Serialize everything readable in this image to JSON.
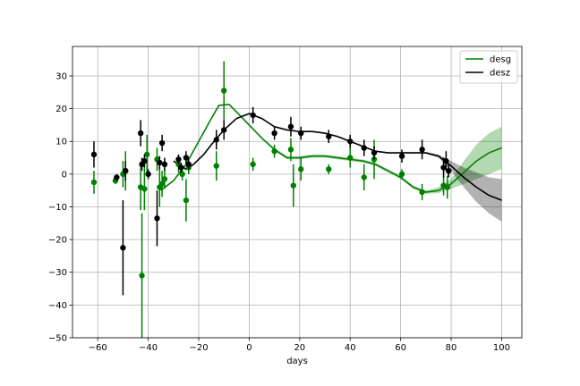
{
  "chart_data": {
    "type": "scatter",
    "xlabel": "days",
    "ylabel": "",
    "xlim": [
      -70,
      108
    ],
    "ylim": [
      -50,
      39
    ],
    "xticks": [
      -60,
      -40,
      -20,
      0,
      20,
      40,
      60,
      80,
      100
    ],
    "yticks": [
      -50,
      -40,
      -30,
      -20,
      -10,
      0,
      10,
      20,
      30
    ],
    "xtick_labels": [
      "−60",
      "−40",
      "−20",
      "0",
      "20",
      "40",
      "60",
      "80",
      "100"
    ],
    "ytick_labels": [
      "−50",
      "−40",
      "−30",
      "−20",
      "−10",
      "0",
      "10",
      "20",
      "30"
    ],
    "grid": true,
    "legend_position": "top-right",
    "series": [
      {
        "name": "desg",
        "color": "#008000",
        "points": [
          {
            "x": -61.5,
            "y": -2.5,
            "err": 3.5
          },
          {
            "x": -53,
            "y": -2.0,
            "err": 1.0
          },
          {
            "x": -50,
            "y": 0.0,
            "err": 4.0
          },
          {
            "x": -49,
            "y": 1.0,
            "err": 6.0
          },
          {
            "x": -43,
            "y": -4.0,
            "err": 7.0
          },
          {
            "x": -42.5,
            "y": -31.0,
            "err": 19.0
          },
          {
            "x": -41.5,
            "y": -4.5,
            "err": 6.5
          },
          {
            "x": -40.5,
            "y": 6.0,
            "err": 6.0
          },
          {
            "x": -36.5,
            "y": 4.5,
            "err": 3.5
          },
          {
            "x": -35.5,
            "y": -4.0,
            "err": 6.0
          },
          {
            "x": -34.5,
            "y": -3.0,
            "err": 4.0
          },
          {
            "x": -33.5,
            "y": -1.5,
            "err": 3.0
          },
          {
            "x": -28,
            "y": 3.0,
            "err": 2.5
          },
          {
            "x": -26.5,
            "y": 0.0,
            "err": 2.0
          },
          {
            "x": -25,
            "y": -8.0,
            "err": 6.5
          },
          {
            "x": -24,
            "y": 2.0,
            "err": 2.0
          },
          {
            "x": -13,
            "y": 2.5,
            "err": 4.5
          },
          {
            "x": -10,
            "y": 25.5,
            "err": 9.0
          },
          {
            "x": 1.5,
            "y": 3.0,
            "err": 2.0
          },
          {
            "x": 10,
            "y": 7.0,
            "err": 2.0
          },
          {
            "x": 16.5,
            "y": 7.5,
            "err": 3.5
          },
          {
            "x": 17.5,
            "y": -3.5,
            "err": 6.5
          },
          {
            "x": 20.5,
            "y": 1.5,
            "err": 3.5
          },
          {
            "x": 31.5,
            "y": 1.5,
            "err": 1.5
          },
          {
            "x": 40,
            "y": 5.0,
            "err": 3.0
          },
          {
            "x": 45.5,
            "y": -1.0,
            "err": 4.0
          },
          {
            "x": 49.5,
            "y": 4.5,
            "err": 6.0
          },
          {
            "x": 60.5,
            "y": 0.0,
            "err": 1.5
          },
          {
            "x": 68.5,
            "y": -5.5,
            "err": 2.5
          },
          {
            "x": 77,
            "y": -3.5,
            "err": 3.0
          },
          {
            "x": 78.5,
            "y": -4.0,
            "err": 3.5
          }
        ],
        "trend": [
          {
            "x": -35,
            "y": -5.0,
            "lo": -5.0,
            "hi": -5.0
          },
          {
            "x": -30,
            "y": -2.0,
            "lo": -2.0,
            "hi": -2.0
          },
          {
            "x": -25,
            "y": 3.0,
            "lo": 3.0,
            "hi": 3.0
          },
          {
            "x": -20,
            "y": 10.0,
            "lo": 10.0,
            "hi": 10.0
          },
          {
            "x": -15,
            "y": 17.0,
            "lo": 17.0,
            "hi": 17.0
          },
          {
            "x": -12,
            "y": 21.0,
            "lo": 21.0,
            "hi": 21.0
          },
          {
            "x": -8,
            "y": 21.3,
            "lo": 21.3,
            "hi": 21.3
          },
          {
            "x": -5,
            "y": 19.0,
            "lo": 19.0,
            "hi": 19.0
          },
          {
            "x": 0,
            "y": 15.0,
            "lo": 15.0,
            "hi": 15.0
          },
          {
            "x": 5,
            "y": 11.0,
            "lo": 11.0,
            "hi": 11.0
          },
          {
            "x": 10,
            "y": 7.5,
            "lo": 7.0,
            "hi": 8.0
          },
          {
            "x": 15,
            "y": 5.0,
            "lo": 4.5,
            "hi": 5.5
          },
          {
            "x": 20,
            "y": 5.0,
            "lo": 4.5,
            "hi": 5.5
          },
          {
            "x": 25,
            "y": 5.5,
            "lo": 5.0,
            "hi": 6.0
          },
          {
            "x": 30,
            "y": 5.5,
            "lo": 5.0,
            "hi": 6.0
          },
          {
            "x": 35,
            "y": 5.0,
            "lo": 4.5,
            "hi": 5.5
          },
          {
            "x": 40,
            "y": 4.5,
            "lo": 4.0,
            "hi": 5.0
          },
          {
            "x": 45,
            "y": 4.0,
            "lo": 3.5,
            "hi": 4.5
          },
          {
            "x": 50,
            "y": 3.0,
            "lo": 2.5,
            "hi": 3.5
          },
          {
            "x": 55,
            "y": 1.0,
            "lo": 0.5,
            "hi": 1.5
          },
          {
            "x": 60,
            "y": -1.0,
            "lo": -1.5,
            "hi": -0.5
          },
          {
            "x": 65,
            "y": -4.0,
            "lo": -4.5,
            "hi": -3.5
          },
          {
            "x": 70,
            "y": -5.5,
            "lo": -6.0,
            "hi": -5.0
          },
          {
            "x": 75,
            "y": -5.0,
            "lo": -5.8,
            "hi": -4.0
          },
          {
            "x": 80,
            "y": -3.0,
            "lo": -4.5,
            "hi": -1.5
          },
          {
            "x": 85,
            "y": 0.5,
            "lo": -3.0,
            "hi": 4.0
          },
          {
            "x": 90,
            "y": 4.0,
            "lo": -1.5,
            "hi": 9.0
          },
          {
            "x": 95,
            "y": 6.5,
            "lo": 0.0,
            "hi": 12.5
          },
          {
            "x": 100,
            "y": 8.0,
            "lo": 1.5,
            "hi": 14.5
          }
        ]
      },
      {
        "name": "desz",
        "color": "#000000",
        "points": [
          {
            "x": -61.5,
            "y": 6.0,
            "err": 4.0
          },
          {
            "x": -52.5,
            "y": -1.0,
            "err": 1.0
          },
          {
            "x": -50,
            "y": -22.5,
            "err": 14.5
          },
          {
            "x": -49,
            "y": 1.0,
            "err": 3.0
          },
          {
            "x": -43,
            "y": 12.5,
            "err": 4.0
          },
          {
            "x": -42.5,
            "y": 3.0,
            "err": 2.0
          },
          {
            "x": -41.5,
            "y": 4.0,
            "err": 2.0
          },
          {
            "x": -40,
            "y": 0.0,
            "err": 1.5
          },
          {
            "x": -36.5,
            "y": -13.5,
            "err": 8.5
          },
          {
            "x": -35.5,
            "y": 3.5,
            "err": 2.0
          },
          {
            "x": -34.5,
            "y": 9.5,
            "err": 2.5
          },
          {
            "x": -33.5,
            "y": 3.0,
            "err": 2.0
          },
          {
            "x": -28,
            "y": 4.5,
            "err": 1.5
          },
          {
            "x": -27,
            "y": 2.0,
            "err": 1.5
          },
          {
            "x": -25,
            "y": 5.0,
            "err": 2.0
          },
          {
            "x": -24,
            "y": 3.0,
            "err": 1.5
          },
          {
            "x": -13,
            "y": 10.5,
            "err": 3.0
          },
          {
            "x": -10,
            "y": 13.5,
            "err": 3.0
          },
          {
            "x": 1.5,
            "y": 18.0,
            "err": 2.5
          },
          {
            "x": 10,
            "y": 12.5,
            "err": 2.0
          },
          {
            "x": 16.5,
            "y": 14.5,
            "err": 3.0
          },
          {
            "x": 20.5,
            "y": 12.5,
            "err": 2.0
          },
          {
            "x": 31.5,
            "y": 11.5,
            "err": 2.0
          },
          {
            "x": 40,
            "y": 10.0,
            "err": 2.0
          },
          {
            "x": 45.5,
            "y": 8.0,
            "err": 2.5
          },
          {
            "x": 49.5,
            "y": 6.5,
            "err": 2.0
          },
          {
            "x": 60.5,
            "y": 5.5,
            "err": 2.0
          },
          {
            "x": 68.5,
            "y": 7.5,
            "err": 3.0
          },
          {
            "x": 77,
            "y": 2.0,
            "err": 3.0
          },
          {
            "x": 78,
            "y": 4.0,
            "err": 3.0
          },
          {
            "x": 79,
            "y": 1.0,
            "err": 2.0
          }
        ],
        "trend": [
          {
            "x": -30,
            "y": 4.0,
            "lo": 4.0,
            "hi": 4.0
          },
          {
            "x": -25,
            "y": 1.5,
            "lo": 1.5,
            "hi": 1.5
          },
          {
            "x": -22,
            "y": 3.0,
            "lo": 3.0,
            "hi": 3.0
          },
          {
            "x": -18,
            "y": 6.0,
            "lo": 6.0,
            "hi": 6.0
          },
          {
            "x": -15,
            "y": 9.0,
            "lo": 9.0,
            "hi": 9.0
          },
          {
            "x": -10,
            "y": 13.5,
            "lo": 13.5,
            "hi": 13.5
          },
          {
            "x": -5,
            "y": 17.0,
            "lo": 17.0,
            "hi": 17.0
          },
          {
            "x": 0,
            "y": 18.5,
            "lo": 18.5,
            "hi": 18.5
          },
          {
            "x": 5,
            "y": 17.0,
            "lo": 17.0,
            "hi": 17.0
          },
          {
            "x": 10,
            "y": 14.5,
            "lo": 14.3,
            "hi": 14.7
          },
          {
            "x": 15,
            "y": 13.5,
            "lo": 13.3,
            "hi": 13.7
          },
          {
            "x": 20,
            "y": 13.0,
            "lo": 12.8,
            "hi": 13.2
          },
          {
            "x": 25,
            "y": 13.0,
            "lo": 12.8,
            "hi": 13.2
          },
          {
            "x": 30,
            "y": 12.5,
            "lo": 12.3,
            "hi": 12.7
          },
          {
            "x": 35,
            "y": 11.5,
            "lo": 11.3,
            "hi": 11.7
          },
          {
            "x": 40,
            "y": 10.0,
            "lo": 9.8,
            "hi": 10.2
          },
          {
            "x": 45,
            "y": 8.5,
            "lo": 8.3,
            "hi": 8.7
          },
          {
            "x": 50,
            "y": 7.0,
            "lo": 6.8,
            "hi": 7.2
          },
          {
            "x": 55,
            "y": 6.5,
            "lo": 6.3,
            "hi": 6.7
          },
          {
            "x": 60,
            "y": 6.5,
            "lo": 6.3,
            "hi": 6.7
          },
          {
            "x": 65,
            "y": 6.5,
            "lo": 6.3,
            "hi": 6.7
          },
          {
            "x": 70,
            "y": 6.5,
            "lo": 6.2,
            "hi": 6.8
          },
          {
            "x": 75,
            "y": 5.5,
            "lo": 5.0,
            "hi": 6.0
          },
          {
            "x": 80,
            "y": 2.5,
            "lo": 1.0,
            "hi": 4.0
          },
          {
            "x": 85,
            "y": -1.0,
            "lo": -4.0,
            "hi": 2.0
          },
          {
            "x": 90,
            "y": -4.0,
            "lo": -8.5,
            "hi": 0.5
          },
          {
            "x": 95,
            "y": -6.5,
            "lo": -12.0,
            "hi": -1.0
          },
          {
            "x": 100,
            "y": -8.0,
            "lo": -14.5,
            "hi": -1.5
          }
        ]
      }
    ]
  }
}
